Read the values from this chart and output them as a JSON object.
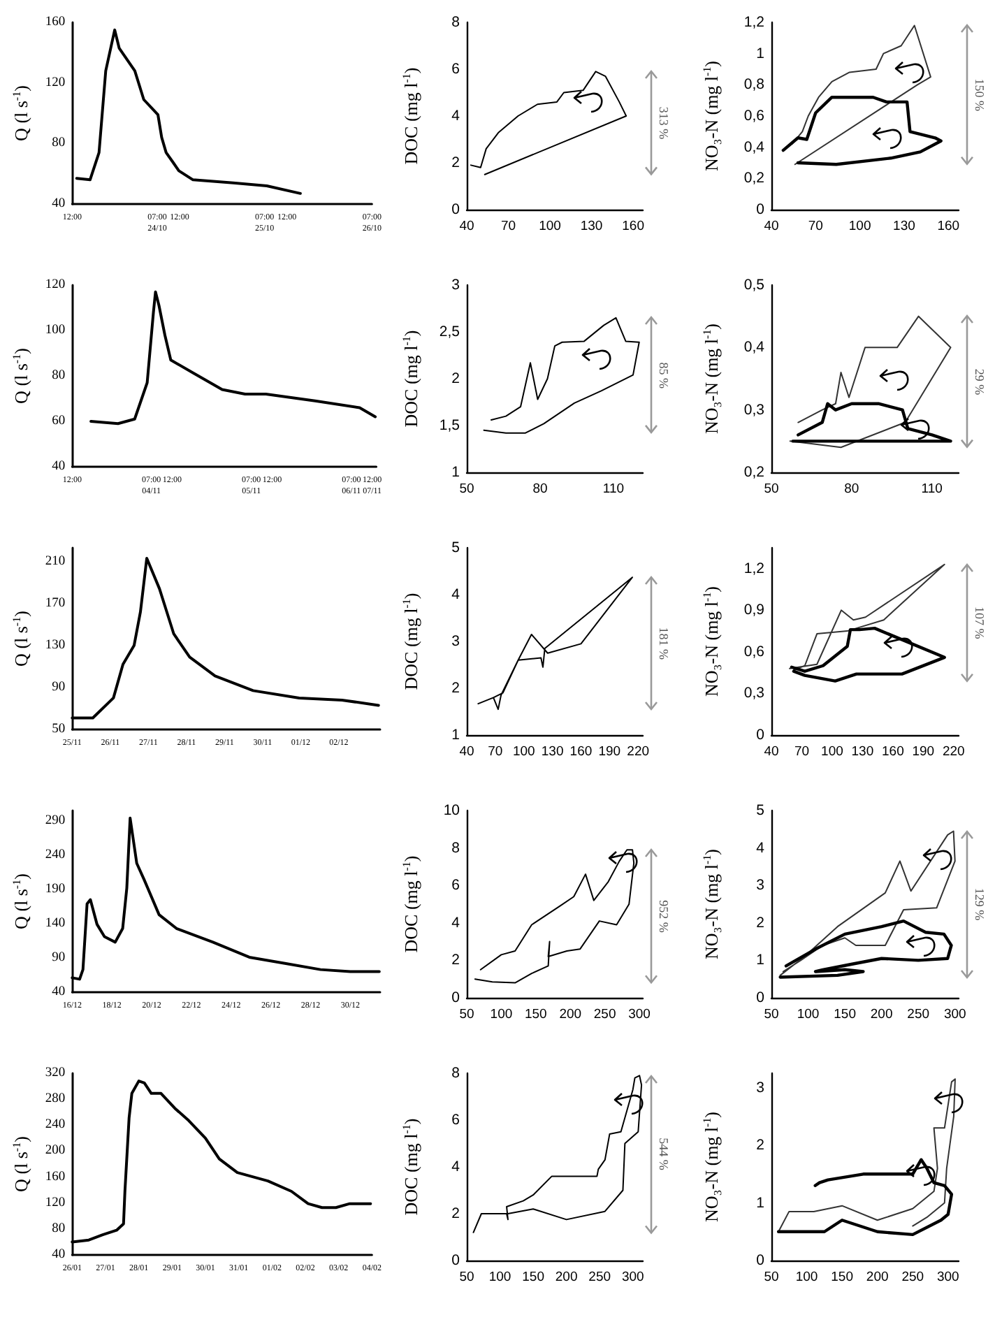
{
  "chart_data": [
    {
      "type": "line",
      "ylabel": "Q (l s$^{-1}$)",
      "marker": "none",
      "grid": false,
      "color": "#000000",
      "xlim": [
        "--10-23T12:00",
        "--10-26T07:00"
      ],
      "xticks": [
        {
          "value": "--10-23T12:00",
          "label": "12:00"
        },
        {
          "value": "--10-24T07:00",
          "label": "07:00\n24/10"
        },
        {
          "value": "--10-24T12:00",
          "label": "12:00"
        },
        {
          "value": "--10-25T07:00",
          "label": "07:00\n25/10"
        },
        {
          "value": "--10-25T12:00",
          "label": "12:00"
        },
        {
          "value": "--10-26T07:00",
          "label": "07:00\n26/10"
        }
      ],
      "ylim": [
        40,
        160
      ],
      "yticks": [
        40,
        80,
        120,
        160
      ],
      "x": [
        "--10-23T13:00",
        "--10-23T16:00",
        "--10-23T18:00",
        "--10-23T19:30",
        "--10-23T21:30",
        "--10-23T22:30",
        "--10-24T02:00",
        "--10-24T04:00",
        "--10-24T07:10",
        "--10-24T08:00",
        "--10-24T09:00",
        "--10-24T10:40",
        "--10-24T11:50",
        "--10-24T15:00",
        "--10-25T00:00",
        "--10-25T07:30",
        "--10-25T15:00"
      ],
      "values": [
        57,
        56,
        74,
        128,
        155,
        143,
        128,
        109,
        99,
        84,
        74,
        67,
        62,
        56,
        54,
        52,
        47
      ]
    },
    {
      "type": "line",
      "ylabel": "DOC (mg l$^{-1}$)",
      "marker": "none",
      "grid": false,
      "xlim": [
        40,
        167
      ],
      "xticks": [
        40,
        70,
        100,
        130,
        160
      ],
      "ylim": [
        0,
        8
      ],
      "yticks": [
        0,
        2,
        4,
        6,
        8
      ],
      "annotations": [
        "313 %"
      ],
      "series": [
        {
          "color": "#000000",
          "x": [
            53,
            155,
            150,
            140,
            133,
            124,
            110,
            105,
            91,
            77,
            63,
            54,
            50,
            43
          ],
          "values": [
            1.5,
            4.0,
            4.6,
            5.7,
            5.9,
            5.1,
            5.0,
            4.6,
            4.5,
            4.0,
            3.3,
            2.6,
            1.8,
            1.9
          ]
        }
      ]
    },
    {
      "type": "line",
      "ylabel": "NO₃-N (mg l$^{-1}$)",
      "marker": "none",
      "grid": false,
      "xlim": [
        40,
        167
      ],
      "xticks": [
        40,
        70,
        100,
        130,
        160
      ],
      "ylim": [
        0,
        1.2
      ],
      "yticks": [
        0,
        {
          "value": 0.2,
          "label": "0,2"
        },
        {
          "value": 0.4,
          "label": "0,4"
        },
        {
          "value": 0.6,
          "label": "0,6"
        },
        {
          "value": 0.8,
          "label": "0,8"
        },
        1,
        {
          "value": 1.2,
          "label": "1,2"
        }
      ],
      "annotations": [
        "150 %"
      ],
      "series": [
        {
          "color": "#333333",
          "x": [
            56,
            139,
            148,
            137,
            128,
            116,
            111,
            93,
            81,
            72,
            65,
            61,
            54
          ],
          "values": [
            0.29,
            0.8,
            0.85,
            1.18,
            1.05,
            1.0,
            0.9,
            0.88,
            0.82,
            0.72,
            0.6,
            0.5,
            0.42
          ]
        },
        {
          "color": "#000000",
          "x": [
            48,
            58,
            64,
            70,
            81,
            109,
            118,
            132,
            134,
            151,
            155,
            141,
            121,
            84,
            58
          ],
          "values": [
            0.38,
            0.46,
            0.45,
            0.62,
            0.72,
            0.72,
            0.69,
            0.69,
            0.5,
            0.46,
            0.44,
            0.37,
            0.33,
            0.29,
            0.3
          ]
        }
      ]
    },
    {
      "type": "line",
      "ylabel": "Q (l s$^{-1}$)",
      "marker": "none",
      "grid": false,
      "color": "#000000",
      "xlim": [
        "--11-03T12:00",
        "--11-06T13:00"
      ],
      "xticks": [
        {
          "value": "--11-03T12:00",
          "label": "12:00"
        },
        {
          "value": "--11-04T07:00",
          "label": "07:00\n04/11"
        },
        {
          "value": "--11-04T12:00",
          "label": "12:00"
        },
        {
          "value": "--11-05T07:00",
          "label": "07:00\n05/11"
        },
        {
          "value": "--11-05T12:00",
          "label": "12:00"
        },
        {
          "value": "--11-06T07:00",
          "label": "07:00\n06/11"
        },
        {
          "value": "--11-06T12:00",
          "label": "12:00\n07/11"
        }
      ],
      "ylim": [
        40,
        120
      ],
      "yticks": [
        40,
        60,
        80,
        100,
        120
      ],
      "x": [
        "--11-03T16:30",
        "--11-03T23:00",
        "--11-04T03:00",
        "--11-04T06:00",
        "--11-04T07:30",
        "--11-04T08:00",
        "--11-04T08:50",
        "--11-04T10:15",
        "--11-04T11:40",
        "--11-04T17:20",
        "--11-05T00:00",
        "--11-05T05:30",
        "--11-05T10:30",
        "--11-05T22:20",
        "--11-06T09:00",
        "--11-06T12:45"
      ],
      "values": [
        60,
        59,
        61,
        77,
        108,
        117,
        111,
        98,
        87,
        81,
        74,
        72,
        72,
        69,
        66,
        62
      ]
    },
    {
      "type": "line",
      "ylabel": "DOC (mg l$^{-1}$)",
      "marker": "none",
      "grid": false,
      "xlim": [
        50,
        122
      ],
      "xticks": [
        50,
        80,
        110
      ],
      "ylim": [
        1,
        3
      ],
      "yticks": [
        1,
        {
          "value": 1.5,
          "label": "1,5"
        },
        2,
        {
          "value": 2.5,
          "label": "2,5"
        },
        3
      ],
      "annotations": [
        "85 %"
      ],
      "series": [
        {
          "color": "#000000",
          "x": [
            57,
            66,
            74,
            81.5,
            94,
            105,
            118,
            120.5,
            115,
            111,
            106,
            98,
            89,
            86,
            83,
            79,
            76,
            72,
            66,
            60
          ],
          "values": [
            1.45,
            1.42,
            1.42,
            1.52,
            1.74,
            1.87,
            2.04,
            2.39,
            2.4,
            2.65,
            2.57,
            2.4,
            2.39,
            2.35,
            2.0,
            1.78,
            2.17,
            1.7,
            1.6,
            1.56
          ]
        }
      ]
    },
    {
      "type": "line",
      "ylabel": "NO₃-N (mg l$^{-1}$)",
      "marker": "none",
      "grid": false,
      "xlim": [
        50,
        120
      ],
      "xticks": [
        50,
        80,
        110
      ],
      "ylim": [
        0.2,
        0.5
      ],
      "yticks": [
        {
          "value": 0.2,
          "label": "0,2"
        },
        {
          "value": 0.3,
          "label": "0,3"
        },
        {
          "value": 0.4,
          "label": "0,4"
        },
        {
          "value": 0.5,
          "label": "0,5"
        }
      ],
      "annotations": [
        "29 %"
      ],
      "series": [
        {
          "color": "#333333",
          "x": [
            57,
            76,
            100,
            117,
            105,
            97,
            85,
            79,
            76,
            74,
            69,
            60
          ],
          "values": [
            0.25,
            0.24,
            0.28,
            0.4,
            0.45,
            0.4,
            0.4,
            0.32,
            0.36,
            0.31,
            0.3,
            0.28
          ]
        },
        {
          "color": "#000000",
          "x": [
            60,
            69,
            71,
            74,
            80,
            90,
            99,
            101,
            110,
            117,
            94,
            58
          ],
          "values": [
            0.26,
            0.28,
            0.31,
            0.3,
            0.31,
            0.31,
            0.3,
            0.27,
            0.26,
            0.25,
            0.25,
            0.25
          ]
        }
      ]
    },
    {
      "type": "line",
      "ylabel": "Q (l s$^{-1}$)",
      "marker": "none",
      "grid": false,
      "color": "#000000",
      "xlim": [
        "--11-25T00:00",
        "--12-03T02:00"
      ],
      "xticks": [
        {
          "value": "--11-25",
          "label": "25/11"
        },
        {
          "value": "--11-26",
          "label": "26/11"
        },
        {
          "value": "--11-27",
          "label": "27/11"
        },
        {
          "value": "--11-28",
          "label": "28/11"
        },
        {
          "value": "--11-29",
          "label": "29/11"
        },
        {
          "value": "--11-30",
          "label": "30/11"
        },
        {
          "value": "--12-01",
          "label": "01/12"
        },
        {
          "value": "--12-02",
          "label": "02/12"
        }
      ],
      "ylim": [
        50,
        223
      ],
      "yticks": [
        50,
        90,
        130,
        170,
        210
      ],
      "x": [
        "--11-25T00:00",
        "--11-25T13:00",
        "--11-26T02:00",
        "--11-26T08:00",
        "--11-26T15:00",
        "--11-26T19:00",
        "--11-26T23:00",
        "--11-27T07:00",
        "--11-27T16:00",
        "--11-28T02:00",
        "--11-28T18:00",
        "--11-29T18:00",
        "--11-30T23:00",
        "--12-02T02:00",
        "--12-03T01:00"
      ],
      "values": [
        61,
        61,
        80,
        112,
        130,
        162,
        213,
        184,
        141,
        119,
        101,
        87,
        80,
        78,
        73
      ]
    },
    {
      "type": "line",
      "ylabel": "DOC (mg l$^{-1}$)",
      "marker": "none",
      "grid": false,
      "xlim": [
        40,
        225
      ],
      "xticks": [
        40,
        70,
        100,
        130,
        160,
        190,
        220
      ],
      "ylim": [
        1,
        5
      ],
      "yticks": [
        1,
        2,
        3,
        4,
        5
      ],
      "annotations": [
        "181 %"
      ],
      "series": [
        {
          "color": "#000000",
          "x": [
            52,
            68,
            73,
            76,
            94,
            118,
            120,
            122,
            214,
            160,
            125,
            108,
            94,
            78,
            68
          ],
          "values": [
            1.67,
            1.8,
            1.55,
            1.85,
            2.6,
            2.65,
            2.45,
            2.85,
            4.37,
            2.95,
            2.75,
            3.15,
            2.6,
            1.9,
            1.8
          ]
        }
      ]
    },
    {
      "type": "line",
      "ylabel": "NO₃-N (mg l$^{-1}$)",
      "marker": "none",
      "grid": false,
      "xlim": [
        40,
        225
      ],
      "xticks": [
        40,
        70,
        100,
        130,
        160,
        190,
        220
      ],
      "ylim": [
        0,
        1.35
      ],
      "yticks": [
        0,
        {
          "value": 0.3,
          "label": "0,3"
        },
        {
          "value": 0.6,
          "label": "0,6"
        },
        {
          "value": 0.9,
          "label": "0,9"
        },
        {
          "value": 1.2,
          "label": "1,2"
        }
      ],
      "annotations": [
        "107 %"
      ],
      "series": [
        {
          "color": "#333333",
          "x": [
            58,
            85,
            109,
            121,
            133,
            211,
            151,
            124,
            115,
            85,
            73,
            62
          ],
          "values": [
            0.48,
            0.51,
            0.9,
            0.83,
            0.85,
            1.23,
            0.83,
            0.77,
            0.75,
            0.73,
            0.5,
            0.47
          ]
        },
        {
          "color": "#000000",
          "x": [
            62,
            73,
            103,
            124,
            169,
            211,
            142,
            127,
            118,
            115,
            91,
            73,
            60
          ],
          "values": [
            0.46,
            0.43,
            0.39,
            0.44,
            0.44,
            0.56,
            0.77,
            0.76,
            0.76,
            0.64,
            0.5,
            0.46,
            0.49
          ]
        }
      ]
    },
    {
      "type": "line",
      "ylabel": "Q (l s$^{-1}$)",
      "marker": "none",
      "grid": false,
      "color": "#000000",
      "xlim": [
        "--12-16T00:00",
        "--12-31T12:00"
      ],
      "xticks": [
        {
          "value": "--12-16",
          "label": "16/12"
        },
        {
          "value": "--12-18",
          "label": "18/12"
        },
        {
          "value": "--12-20",
          "label": "20/12"
        },
        {
          "value": "--12-22",
          "label": "22/12"
        },
        {
          "value": "--12-24",
          "label": "24/12"
        },
        {
          "value": "--12-26",
          "label": "26/12"
        },
        {
          "value": "--12-28",
          "label": "28/12"
        },
        {
          "value": "--12-30",
          "label": "30/12"
        }
      ],
      "ylim": [
        40,
        305
      ],
      "yticks": [
        40,
        90,
        140,
        190,
        240,
        290
      ],
      "x": [
        "--12-16T00:00",
        "--12-16T09:00",
        "--12-16T13:00",
        "--12-16T18:00",
        "--12-16T22:00",
        "--12-17T06:00",
        "--12-17T15:00",
        "--12-18T04:00",
        "--12-18T13:00",
        "--12-18T18:00",
        "--12-18T22:00",
        "--12-19T06:00",
        "--12-19T15:00",
        "--12-20T09:00",
        "--12-21T06:00",
        "--12-23T02:00",
        "--12-24T22:00",
        "--12-26T17:00",
        "--12-28T12:00",
        "--12-30T00:00",
        "--12-31T11:00"
      ],
      "values": [
        61,
        59,
        73,
        169,
        175,
        139,
        121,
        113,
        133,
        192,
        294,
        228,
        204,
        153,
        133,
        113,
        91,
        82,
        73,
        70,
        70
      ]
    },
    {
      "type": "line",
      "ylabel": "DOC (mg l$^{-1}$)",
      "marker": "none",
      "grid": false,
      "xlim": [
        50,
        305
      ],
      "xticks": [
        50,
        100,
        150,
        200,
        250,
        300
      ],
      "ylim": [
        0,
        10
      ],
      "yticks": [
        0,
        2,
        4,
        6,
        8,
        10
      ],
      "annotations": [
        "952 %"
      ],
      "series": [
        {
          "color": "#000000",
          "x": [
            62,
            87,
            120,
            144,
            168,
            170,
            168,
            195,
            214,
            242,
            267,
            285,
            292,
            290,
            282,
            271,
            255,
            234,
            222,
            205,
            185,
            144,
            120,
            100,
            70
          ],
          "values": [
            1.0,
            0.85,
            0.8,
            1.3,
            1.7,
            3.0,
            2.2,
            2.5,
            2.6,
            4.1,
            3.9,
            5.0,
            7.2,
            7.9,
            7.9,
            7.3,
            6.2,
            5.2,
            6.6,
            5.4,
            4.9,
            3.9,
            2.5,
            2.3,
            1.5
          ]
        }
      ]
    },
    {
      "type": "line",
      "ylabel": "NO₃-N (mg l$^{-1}$)",
      "marker": "none",
      "grid": false,
      "xlim": [
        50,
        305
      ],
      "xticks": [
        50,
        100,
        150,
        200,
        250,
        300
      ],
      "ylim": [
        0,
        5
      ],
      "yticks": [
        0,
        1,
        2,
        3,
        4,
        5
      ],
      "annotations": [
        "129 %"
      ],
      "series": [
        {
          "color": "#333333",
          "x": [
            62,
            95,
            140,
            205,
            225,
            240,
            290,
            298,
            300,
            275,
            230,
            205,
            165,
            150,
            120,
            90,
            66
          ],
          "values": [
            0.6,
            1.1,
            1.9,
            2.8,
            3.65,
            2.85,
            4.35,
            4.45,
            3.65,
            2.4,
            2.35,
            1.4,
            1.4,
            1.6,
            1.4,
            1.0,
            0.7
          ]
        },
        {
          "color": "#000000",
          "x": [
            70,
            110,
            150,
            200,
            230,
            260,
            285,
            295,
            290,
            250,
            200,
            160,
            120,
            110,
            150,
            175,
            140,
            62
          ],
          "values": [
            0.85,
            1.3,
            1.7,
            1.9,
            2.05,
            1.75,
            1.7,
            1.4,
            1.05,
            1.0,
            1.05,
            0.9,
            0.75,
            0.7,
            0.75,
            0.7,
            0.6,
            0.55
          ]
        }
      ]
    },
    {
      "type": "line",
      "ylabel": "Q (l s$^{-1}$)",
      "marker": "none",
      "grid": false,
      "color": "#000000",
      "xlim": [
        "--01-26T00:00",
        "--02-04T00:00"
      ],
      "xticks": [
        {
          "value": "--01-26",
          "label": "26/01"
        },
        {
          "value": "--01-27",
          "label": "27/01"
        },
        {
          "value": "--01-28",
          "label": "28/01"
        },
        {
          "value": "--01-29",
          "label": "29/01"
        },
        {
          "value": "--01-30",
          "label": "30/01"
        },
        {
          "value": "--01-31",
          "label": "31/01"
        },
        {
          "value": "--02-01",
          "label": "01/02"
        },
        {
          "value": "--02-02",
          "label": "02/02"
        },
        {
          "value": "--02-03",
          "label": "03/02"
        },
        {
          "value": "--02-04",
          "label": "04/02"
        }
      ],
      "ylim": [
        40,
        320
      ],
      "yticks": [
        40,
        80,
        120,
        160,
        200,
        240,
        280,
        320
      ],
      "x": [
        "--01-26T00:00",
        "--01-26T12:00",
        "--01-26T22:00",
        "--01-27T08:00",
        "--01-27T13:00",
        "--01-27T14:00",
        "--01-27T17:00",
        "--01-27T19:00",
        "--01-28T00:00",
        "--01-28T04:00",
        "--01-28T09:00",
        "--01-28T16:00",
        "--01-29T02:00",
        "--01-29T12:00",
        "--01-30T00:00",
        "--01-30T10:00",
        "--01-30T23:00",
        "--01-31T21:00",
        "--02-01T14:00",
        "--02-02T02:00",
        "--02-02T12:00",
        "--02-02T22:00",
        "--02-03T08:00",
        "--02-03T23:00"
      ],
      "values": [
        60,
        63,
        71,
        78,
        88,
        138,
        251,
        289,
        308,
        305,
        289,
        289,
        266,
        247,
        220,
        188,
        167,
        154,
        138,
        119,
        113,
        113,
        119,
        119
      ]
    },
    {
      "type": "line",
      "ylabel": "DOC (mg l$^{-1}$)",
      "marker": "none",
      "grid": false,
      "xlim": [
        50,
        315
      ],
      "xticks": [
        50,
        100,
        150,
        200,
        250,
        300
      ],
      "ylim": [
        0,
        8
      ],
      "yticks": [
        0,
        2,
        4,
        6,
        8
      ],
      "annotations": [
        "544 %"
      ],
      "series": [
        {
          "color": "#000000",
          "x": [
            60,
            72,
            110,
            112,
            110,
            135,
            150,
            178,
            246,
            248,
            258,
            265,
            282,
            300,
            303,
            310,
            313,
            308,
            288,
            285,
            258,
            200,
            150,
            112
          ],
          "values": [
            1.2,
            2.0,
            2.0,
            1.75,
            2.3,
            2.55,
            2.8,
            3.6,
            3.6,
            3.9,
            4.3,
            5.4,
            5.5,
            7.3,
            7.8,
            7.9,
            7.5,
            5.5,
            5.0,
            3.0,
            2.1,
            1.75,
            2.2,
            2.0
          ]
        }
      ]
    },
    {
      "type": "line",
      "ylabel": "NO₃-N (mg l$^{-1}$)",
      "marker": "none",
      "grid": false,
      "xlim": [
        50,
        315
      ],
      "xticks": [
        50,
        100,
        150,
        200,
        250,
        300
      ],
      "ylim": [
        0,
        3.25
      ],
      "yticks": [
        0,
        1,
        2,
        3
      ],
      "series": [
        {
          "color": "#333333",
          "x": [
            60,
            75,
            110,
            150,
            200,
            250,
            280,
            285,
            280,
            295,
            305,
            310,
            308,
            298,
            295,
            270,
            250
          ],
          "values": [
            0.5,
            0.85,
            0.85,
            0.95,
            0.7,
            0.9,
            1.2,
            1.6,
            2.3,
            2.3,
            3.1,
            3.15,
            2.5,
            1.6,
            1.0,
            0.75,
            0.6
          ]
        },
        {
          "color": "#000000",
          "x": [
            112,
            118,
            130,
            180,
            250,
            262,
            270,
            280,
            295,
            305,
            300,
            290,
            250,
            200,
            150,
            125,
            60
          ],
          "values": [
            1.3,
            1.35,
            1.4,
            1.5,
            1.5,
            1.75,
            1.6,
            1.35,
            1.3,
            1.15,
            0.8,
            0.7,
            0.45,
            0.5,
            0.7,
            0.5,
            0.5
          ]
        }
      ]
    }
  ]
}
